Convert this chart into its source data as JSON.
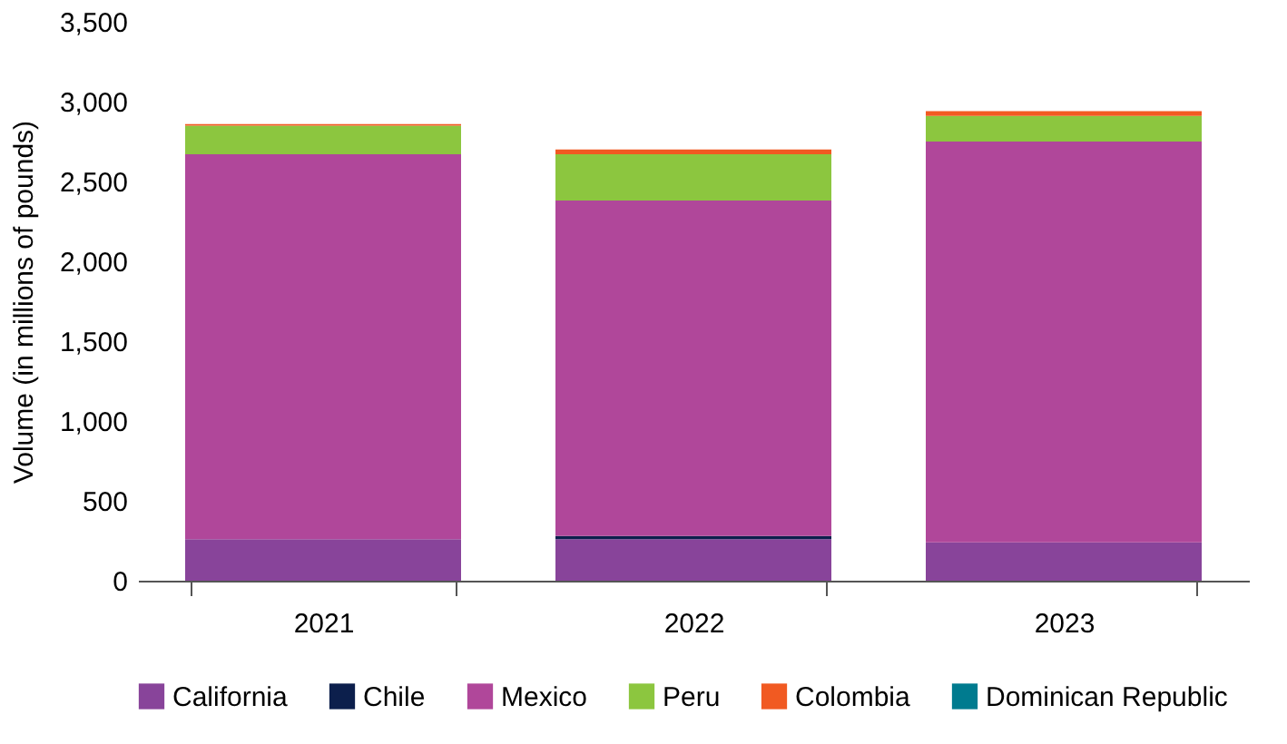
{
  "chart_data": {
    "type": "bar",
    "stacked": true,
    "ylabel": "Volume (in millions of pounds)",
    "categories": [
      "2021",
      "2022",
      "2023"
    ],
    "series": [
      {
        "name": "California",
        "color": "#88449a",
        "values": [
          260,
          260,
          240
        ]
      },
      {
        "name": "Chile",
        "color": "#0c1f4c",
        "values": [
          0,
          20,
          0
        ]
      },
      {
        "name": "Mexico",
        "color": "#b0479a",
        "values": [
          2410,
          2100,
          2510
        ]
      },
      {
        "name": "Peru",
        "color": "#8cc63f",
        "values": [
          180,
          290,
          160
        ]
      },
      {
        "name": "Colombia",
        "color": "#f15a22",
        "values": [
          10,
          30,
          30
        ]
      },
      {
        "name": "Dominican Republic",
        "color": "#007b8f",
        "values": [
          0,
          0,
          0
        ]
      }
    ],
    "ylim": [
      0,
      3500
    ],
    "yticks": [
      0,
      500,
      {
        "value": 1000,
        "label": "1,000"
      },
      {
        "value": 1500,
        "label": "1,500"
      },
      {
        "value": 2000,
        "label": "2,000"
      },
      {
        "value": 2500,
        "label": "2,500"
      },
      {
        "value": 3000,
        "label": "3,000"
      },
      {
        "value": 3500,
        "label": "3,500"
      }
    ],
    "grid": false,
    "legend": "bottom"
  }
}
